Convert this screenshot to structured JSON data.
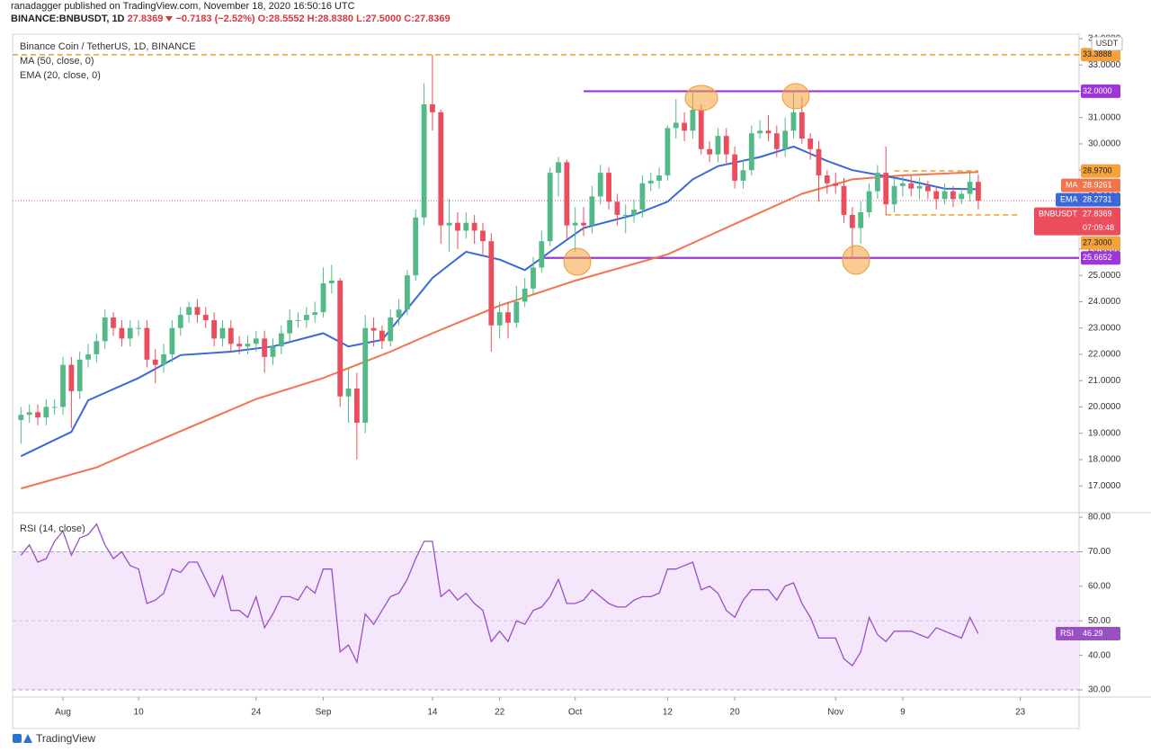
{
  "header": {
    "publisher": "ranadagger published on TradingView.com, November 18, 2020 16:50:16 UTC",
    "symbol": "BINANCE:BNBUSDT, 1D",
    "price": "27.8369",
    "change": "−0.7183 (−2.52%)",
    "ohlc": "O:28.5552 H:28.8380 L:27.5000 C:27.8369"
  },
  "chart_data": [
    {
      "type": "candlestick",
      "title": "Binance Coin / TetherUS, 1D, BINANCE",
      "currency": "USDT",
      "last_tag": "BNBUSDT",
      "countdown": "07:09:48",
      "up_color": "#53b987",
      "down_color": "#eb4d5c",
      "x": [
        "2020-07-27",
        "2020-07-28",
        "2020-07-29",
        "2020-07-30",
        "2020-07-31",
        "2020-08-01",
        "2020-08-02",
        "2020-08-03",
        "2020-08-04",
        "2020-08-05",
        "2020-08-06",
        "2020-08-07",
        "2020-08-08",
        "2020-08-09",
        "2020-08-10",
        "2020-08-11",
        "2020-08-12",
        "2020-08-13",
        "2020-08-14",
        "2020-08-15",
        "2020-08-16",
        "2020-08-17",
        "2020-08-18",
        "2020-08-19",
        "2020-08-20",
        "2020-08-21",
        "2020-08-22",
        "2020-08-23",
        "2020-08-24",
        "2020-08-25",
        "2020-08-26",
        "2020-08-27",
        "2020-08-28",
        "2020-08-29",
        "2020-08-30",
        "2020-08-31",
        "2020-09-01",
        "2020-09-02",
        "2020-09-03",
        "2020-09-04",
        "2020-09-05",
        "2020-09-06",
        "2020-09-07",
        "2020-09-08",
        "2020-09-09",
        "2020-09-10",
        "2020-09-11",
        "2020-09-12",
        "2020-09-13",
        "2020-09-14",
        "2020-09-15",
        "2020-09-16",
        "2020-09-17",
        "2020-09-18",
        "2020-09-19",
        "2020-09-20",
        "2020-09-21",
        "2020-09-22",
        "2020-09-23",
        "2020-09-24",
        "2020-09-25",
        "2020-09-26",
        "2020-09-27",
        "2020-09-28",
        "2020-09-29",
        "2020-09-30",
        "2020-10-01",
        "2020-10-02",
        "2020-10-03",
        "2020-10-04",
        "2020-10-05",
        "2020-10-06",
        "2020-10-07",
        "2020-10-08",
        "2020-10-09",
        "2020-10-10",
        "2020-10-11",
        "2020-10-12",
        "2020-10-13",
        "2020-10-14",
        "2020-10-15",
        "2020-10-16",
        "2020-10-17",
        "2020-10-18",
        "2020-10-19",
        "2020-10-20",
        "2020-10-21",
        "2020-10-22",
        "2020-10-23",
        "2020-10-24",
        "2020-10-25",
        "2020-10-26",
        "2020-10-27",
        "2020-10-28",
        "2020-10-29",
        "2020-10-30",
        "2020-10-31",
        "2020-11-01",
        "2020-11-02",
        "2020-11-03",
        "2020-11-04",
        "2020-11-05",
        "2020-11-06",
        "2020-11-07",
        "2020-11-08",
        "2020-11-09",
        "2020-11-10",
        "2020-11-11",
        "2020-11-12",
        "2020-11-13",
        "2020-11-14",
        "2020-11-15",
        "2020-11-16",
        "2020-11-17",
        "2020-11-18"
      ],
      "open": [
        19.5,
        19.7,
        19.8,
        19.6,
        20.0,
        20.0,
        21.6,
        20.6,
        21.8,
        22.0,
        22.5,
        23.4,
        23.0,
        22.6,
        23.0,
        23.0,
        21.8,
        21.6,
        22.0,
        23.0,
        23.5,
        23.8,
        23.5,
        23.3,
        22.6,
        23.0,
        22.4,
        22.3,
        22.4,
        22.6,
        21.9,
        22.3,
        22.8,
        23.3,
        23.3,
        23.5,
        23.6,
        24.7,
        24.8,
        20.4,
        20.7,
        19.4,
        23.0,
        22.9,
        22.5,
        23.4,
        23.7,
        25.0,
        27.2,
        31.5,
        31.2,
        26.9,
        27.0,
        26.7,
        27.0,
        26.7,
        26.3,
        23.1,
        23.6,
        23.2,
        24.0,
        24.5,
        25.3,
        26.3,
        28.9,
        29.3,
        26.9,
        27.0,
        26.9,
        28.0,
        28.9,
        27.8,
        27.3,
        27.3,
        27.5,
        28.5,
        28.6,
        28.8,
        30.6,
        30.8,
        30.5,
        31.3,
        29.8,
        29.6,
        30.3,
        29.6,
        28.6,
        29.0,
        30.4,
        30.5,
        30.4,
        29.8,
        30.5,
        31.2,
        30.2,
        29.8,
        28.8,
        28.5,
        28.4,
        27.3,
        26.8,
        27.4,
        28.2,
        28.9,
        27.7,
        28.4,
        28.5,
        28.3,
        28.4,
        28.2,
        27.9,
        28.2,
        27.9,
        28.1,
        28.5552
      ],
      "high": [
        20.0,
        20.1,
        20.1,
        20.3,
        20.3,
        21.9,
        21.9,
        22.1,
        22.4,
        22.8,
        23.7,
        23.6,
        23.3,
        23.3,
        23.3,
        23.3,
        22.2,
        22.4,
        23.3,
        23.8,
        24.0,
        24.1,
        23.8,
        23.6,
        23.3,
        23.3,
        22.7,
        22.7,
        22.9,
        22.9,
        22.6,
        23.1,
        23.7,
        23.6,
        23.8,
        24.0,
        25.3,
        25.4,
        24.9,
        21.5,
        21.3,
        23.5,
        23.4,
        23.1,
        23.7,
        24.1,
        25.2,
        27.5,
        32.3,
        33.3888,
        31.3,
        27.9,
        27.4,
        27.4,
        27.3,
        27.0,
        26.6,
        24.0,
        24.0,
        24.6,
        24.9,
        25.7,
        26.7,
        29.1,
        29.5,
        29.4,
        27.6,
        27.6,
        28.4,
        29.2,
        29.1,
        28.1,
        27.7,
        27.9,
        28.8,
        28.9,
        29.1,
        30.7,
        31.7,
        31.2,
        32.0,
        31.5,
        30.1,
        30.6,
        30.6,
        29.9,
        29.4,
        30.7,
        30.9,
        31.1,
        30.7,
        31.0,
        32.0,
        31.8,
        30.4,
        30.1,
        29.0,
        28.9,
        28.7,
        27.6,
        27.8,
        28.5,
        29.2,
        29.9,
        28.7,
        28.8,
        28.8,
        28.7,
        28.6,
        28.4,
        28.5,
        28.4,
        28.3,
        28.9,
        28.838
      ],
      "low": [
        18.6,
        19.4,
        19.3,
        19.3,
        19.7,
        19.7,
        19.2,
        20.3,
        21.5,
        21.7,
        22.2,
        22.7,
        22.3,
        22.3,
        22.7,
        21.5,
        20.9,
        21.3,
        21.7,
        22.7,
        23.2,
        23.2,
        23.0,
        22.3,
        22.3,
        22.1,
        22.0,
        22.0,
        22.1,
        21.3,
        21.6,
        22.0,
        22.5,
        23.0,
        23.0,
        23.2,
        23.4,
        24.3,
        20.0,
        19.4,
        18.0,
        19.0,
        22.3,
        22.2,
        22.3,
        23.1,
        23.5,
        24.8,
        26.9,
        30.5,
        26.2,
        25.9,
        26.0,
        26.4,
        26.2,
        25.8,
        22.1,
        22.6,
        22.6,
        23.0,
        23.8,
        24.3,
        25.1,
        26.1,
        28.0,
        26.4,
        25.9,
        26.5,
        26.6,
        27.7,
        27.5,
        26.9,
        26.6,
        27.0,
        27.2,
        28.2,
        28.3,
        28.6,
        30.2,
        30.1,
        30.2,
        29.6,
        29.3,
        29.3,
        29.2,
        28.3,
        28.3,
        28.8,
        30.2,
        30.1,
        29.5,
        29.5,
        30.2,
        30.0,
        29.4,
        27.8,
        28.1,
        28.1,
        27.0,
        25.6652,
        26.2,
        27.2,
        27.9,
        27.3,
        27.4,
        28.0,
        28.0,
        27.9,
        27.9,
        27.5,
        27.7,
        27.6,
        27.7,
        27.8,
        27.5
      ],
      "close": [
        19.7,
        19.8,
        19.6,
        20.0,
        20.0,
        21.6,
        20.6,
        21.8,
        22.0,
        22.5,
        23.4,
        23.0,
        22.6,
        23.0,
        23.0,
        21.8,
        21.6,
        22.0,
        23.0,
        23.5,
        23.8,
        23.5,
        23.3,
        22.6,
        23.0,
        22.4,
        22.3,
        22.4,
        22.6,
        21.9,
        22.3,
        22.8,
        23.3,
        23.3,
        23.5,
        23.6,
        24.7,
        24.8,
        20.4,
        20.7,
        19.4,
        23.0,
        22.9,
        22.5,
        23.4,
        23.7,
        25.0,
        27.2,
        31.5,
        31.2,
        26.9,
        27.0,
        26.7,
        27.0,
        26.7,
        26.3,
        23.1,
        23.6,
        23.2,
        24.0,
        24.5,
        25.3,
        26.3,
        28.9,
        29.3,
        26.9,
        27.0,
        26.9,
        28.0,
        28.9,
        27.8,
        27.3,
        27.3,
        27.5,
        28.5,
        28.6,
        28.8,
        30.6,
        30.8,
        30.5,
        31.3,
        29.8,
        29.6,
        30.3,
        29.6,
        28.6,
        29.0,
        30.4,
        30.5,
        30.4,
        29.8,
        30.5,
        31.2,
        30.2,
        29.8,
        28.8,
        28.5,
        28.4,
        27.3,
        26.8,
        27.4,
        28.2,
        28.9,
        27.7,
        28.4,
        28.5,
        28.3,
        28.4,
        28.2,
        27.9,
        28.2,
        27.9,
        28.1,
        28.5552,
        27.8369
      ],
      "lines": [
        {
          "name": "MA",
          "label": "MA (50, close, 0)",
          "color": "#f2744d",
          "x": [
            "2020-07-27",
            "2020-08-05",
            "2020-08-10",
            "2020-08-24",
            "2020-09-01",
            "2020-09-09",
            "2020-09-14",
            "2020-09-22",
            "2020-10-01",
            "2020-10-12",
            "2020-10-21",
            "2020-10-28",
            "2020-11-03",
            "2020-11-09",
            "2020-11-18"
          ],
          "values": [
            16.9,
            17.7,
            18.4,
            20.3,
            21.1,
            22.1,
            22.8,
            23.85,
            24.8,
            25.8,
            27.1,
            28.1,
            28.65,
            28.8,
            28.9261
          ]
        },
        {
          "name": "EMA",
          "label": "EMA (20, close, 0)",
          "color": "#3a68d8",
          "x": [
            "2020-07-27",
            "2020-08-02",
            "2020-08-04",
            "2020-08-10",
            "2020-08-15",
            "2020-08-21",
            "2020-08-26",
            "2020-09-01",
            "2020-09-04",
            "2020-09-08",
            "2020-09-14",
            "2020-09-18",
            "2020-09-22",
            "2020-09-25",
            "2020-09-28",
            "2020-10-02",
            "2020-10-08",
            "2020-10-12",
            "2020-10-15",
            "2020-10-18",
            "2020-10-23",
            "2020-10-27",
            "2020-10-31",
            "2020-11-03",
            "2020-11-09",
            "2020-11-14",
            "2020-11-18"
          ],
          "values": [
            18.13,
            19.05,
            20.25,
            21.1,
            21.97,
            22.1,
            22.3,
            22.8,
            22.3,
            22.55,
            24.9,
            25.9,
            25.6,
            25.2,
            25.9,
            26.8,
            27.3,
            27.8,
            28.65,
            29.15,
            29.5,
            29.9,
            29.35,
            29.0,
            28.65,
            28.3,
            28.2731
          ]
        }
      ],
      "levels": [
        {
          "value": 33.3888,
          "color": "#f5a23a",
          "style": "dashed"
        },
        {
          "value": 32,
          "label": "32.0000",
          "color": "#9c36d8",
          "style": "solid",
          "start": "2020-10-02"
        },
        {
          "value": 28.97,
          "label": "28.9700",
          "color": "#f5a23a",
          "style": "dashed",
          "start": "2020-11-08",
          "end": "2020-11-18"
        },
        {
          "value": 27.3,
          "label": "27.3000",
          "color": "#f5a23a",
          "style": "dashed",
          "start": "2020-11-07",
          "end": "2020-11-23"
        },
        {
          "value": 25.6652,
          "color": "#9c36d8",
          "style": "solid",
          "start": "2020-09-27"
        }
      ],
      "xlim": [
        "2020-07-26",
        "2020-11-30"
      ],
      "xticks": [
        {
          "value": "2020-08-01",
          "label": "Aug"
        },
        {
          "value": "2020-08-10",
          "label": "10"
        },
        {
          "value": "2020-08-24",
          "label": "24"
        },
        {
          "value": "2020-09-01",
          "label": "Sep"
        },
        {
          "value": "2020-09-14",
          "label": "14"
        },
        {
          "value": "2020-09-22",
          "label": "22"
        },
        {
          "value": "2020-10-01",
          "label": "Oct"
        },
        {
          "value": "2020-10-12",
          "label": "12"
        },
        {
          "value": "2020-10-20",
          "label": "20"
        },
        {
          "value": "2020-11-01",
          "label": "Nov"
        },
        {
          "value": "2020-11-09",
          "label": "9"
        },
        {
          "value": "2020-11-23",
          "label": "23"
        }
      ],
      "ylim": [
        16.05,
        34.1
      ],
      "yticks": [
        {
          "value": 17,
          "label": "17.0000"
        },
        {
          "value": 18,
          "label": "18.0000"
        },
        {
          "value": 19,
          "label": "19.0000"
        },
        {
          "value": 20,
          "label": "20.0000"
        },
        {
          "value": 21,
          "label": "21.0000"
        },
        {
          "value": 22,
          "label": "22.0000"
        },
        {
          "value": 23,
          "label": "23.0000"
        },
        {
          "value": 24,
          "label": "24.0000"
        },
        {
          "value": 25,
          "label": "25.0000"
        },
        {
          "value": 26,
          "label": "26.0000"
        },
        {
          "value": 27,
          "label": "27.0000"
        },
        {
          "value": 28,
          "label": "28.0000"
        },
        {
          "value": 29,
          "label": "29.0000"
        },
        {
          "value": 30,
          "label": "30.0000"
        },
        {
          "value": 31,
          "label": "31.0000"
        },
        {
          "value": 32,
          "label": "32.0000"
        },
        {
          "value": 33,
          "label": "33.0000"
        },
        {
          "value": 34,
          "label": "34.0000"
        }
      ]
    },
    {
      "type": "line",
      "title": "RSI (14, close)",
      "name": "RSI",
      "color": "#9b4fc4",
      "band_color": "#f4e6fb",
      "values": [
        69,
        72,
        67,
        68,
        73,
        76,
        69,
        74,
        75,
        78,
        72,
        68,
        70,
        66,
        65,
        55,
        56,
        58,
        65,
        64,
        67,
        67,
        62,
        57,
        63,
        53,
        53,
        51,
        57,
        48,
        52,
        57,
        57,
        56,
        60,
        58,
        65,
        65,
        41,
        43,
        38,
        52,
        49,
        53,
        57,
        58,
        62,
        68,
        73,
        73,
        57,
        59,
        56,
        58,
        55,
        53,
        44,
        47,
        44,
        50,
        49,
        53,
        54,
        57,
        62,
        55,
        55,
        56,
        59,
        57,
        55,
        54,
        54,
        56,
        57,
        57,
        58,
        65,
        65,
        66,
        67,
        59,
        60,
        58,
        53,
        51,
        56,
        59,
        59,
        59,
        56,
        60,
        61,
        55,
        51,
        45,
        45,
        45,
        39,
        37,
        41,
        51,
        46,
        44,
        47,
        47,
        47,
        46,
        45,
        48,
        47,
        46,
        45,
        51,
        46.29
      ],
      "band": [
        30,
        70
      ],
      "midline": 50,
      "ylim": [
        28.7,
        80.8
      ],
      "yticks": [
        {
          "value": 30,
          "label": "30.00"
        },
        {
          "value": 40,
          "label": "40.00"
        },
        {
          "value": 50,
          "label": "50.00"
        },
        {
          "value": 60,
          "label": "60.00"
        },
        {
          "value": 70,
          "label": "70.00"
        },
        {
          "value": 80,
          "label": "80.00"
        }
      ]
    }
  ],
  "footer": {
    "brand": "TradingView"
  }
}
